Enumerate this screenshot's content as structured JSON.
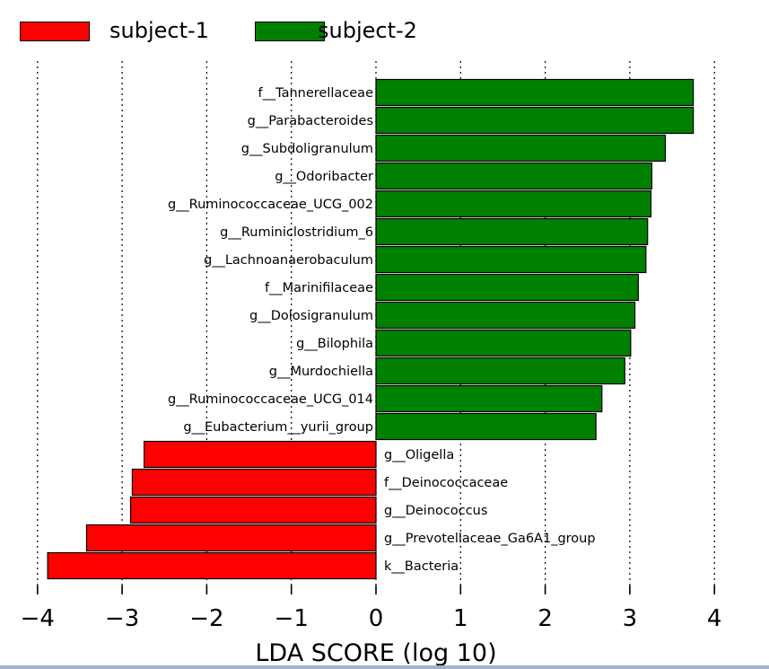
{
  "legend": {
    "items": [
      {
        "label": "subject-1",
        "color": "#ff0000"
      },
      {
        "label": "subject-2",
        "color": "#008000"
      }
    ]
  },
  "chart_data": {
    "type": "bar",
    "orientation": "horizontal",
    "title": "",
    "xlabel": "LDA SCORE (log 10)",
    "ylabel": "",
    "xlim": [
      -4,
      4
    ],
    "xticks": [
      -4,
      -3,
      -2,
      -1,
      0,
      1,
      2,
      3,
      4
    ],
    "xtick_labels": [
      "−4",
      "−3",
      "−2",
      "−1",
      "0",
      "1",
      "2",
      "3",
      "4"
    ],
    "grid": "vertical dotted",
    "legend_position": "top-left",
    "series": [
      {
        "name": "subject-1",
        "color": "#ff0000"
      },
      {
        "name": "subject-2",
        "color": "#008000"
      }
    ],
    "bars": [
      {
        "label": "f__Tannerellaceae",
        "value": 3.75,
        "group": "subject-2"
      },
      {
        "label": "g__Parabacteroides",
        "value": 3.75,
        "group": "subject-2"
      },
      {
        "label": "g__Subdoligranulum",
        "value": 3.42,
        "group": "subject-2"
      },
      {
        "label": "g__Odoribacter",
        "value": 3.26,
        "group": "subject-2"
      },
      {
        "label": "g__Ruminococcaceae_UCG_002",
        "value": 3.25,
        "group": "subject-2"
      },
      {
        "label": "g__Ruminiclostridium_6",
        "value": 3.21,
        "group": "subject-2"
      },
      {
        "label": "g__Lachnoanaerobaculum",
        "value": 3.19,
        "group": "subject-2"
      },
      {
        "label": "f__Marinifilaceae",
        "value": 3.1,
        "group": "subject-2"
      },
      {
        "label": "g__Dolosigranulum",
        "value": 3.06,
        "group": "subject-2"
      },
      {
        "label": "g__Bilophila",
        "value": 3.01,
        "group": "subject-2"
      },
      {
        "label": "g__Murdochiella",
        "value": 2.94,
        "group": "subject-2"
      },
      {
        "label": "g__Ruminococcaceae_UCG_014",
        "value": 2.67,
        "group": "subject-2"
      },
      {
        "label": "g__Eubacterium__yurii_group",
        "value": 2.6,
        "group": "subject-2"
      },
      {
        "label": "g__Oligella",
        "value": -2.74,
        "group": "subject-1"
      },
      {
        "label": "f__Deinococcaceae",
        "value": -2.88,
        "group": "subject-1"
      },
      {
        "label": "g__Deinococcus",
        "value": -2.9,
        "group": "subject-1"
      },
      {
        "label": "g__Prevotellaceae_Ga6A1_group",
        "value": -3.42,
        "group": "subject-1"
      },
      {
        "label": "k__Bacteria",
        "value": -3.88,
        "group": "subject-1"
      }
    ]
  }
}
